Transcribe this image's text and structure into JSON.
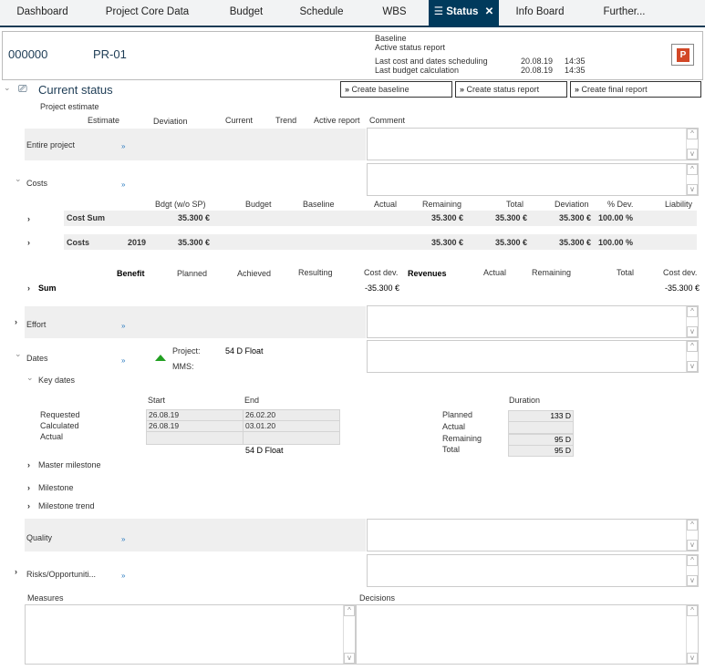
{
  "tabs": [
    "Dashboard",
    "Project Core Data",
    "Budget",
    "Schedule",
    "WBS",
    "Status",
    "Info Board",
    "Further..."
  ],
  "header": {
    "project_id": "000000",
    "project_code": "PR-01",
    "baseline_label": "Baseline",
    "active_report_label": "Active status report",
    "last_cost_label": "Last cost and dates scheduling",
    "last_cost_date": "20.08.19",
    "last_cost_time": "14:35",
    "last_budget_label": "Last budget calculation",
    "last_budget_date": "20.08.19",
    "last_budget_time": "14:35"
  },
  "section_title": "Current status",
  "buttons": {
    "baseline": "Create baseline",
    "status_report": "Create status report",
    "final_report": "Create final report"
  },
  "estimate": {
    "label": "Project estimate",
    "columns": [
      "Estimate",
      "Deviation",
      "Current",
      "Trend",
      "Active report",
      "Comment"
    ]
  },
  "rows": {
    "entire_project": "Entire project",
    "costs": "Costs",
    "effort": "Effort",
    "dates": "Dates",
    "quality": "Quality",
    "risks": "Risks/Opportuniti..."
  },
  "costs": {
    "columns": [
      "Bdgt (w/o SP)",
      "Budget",
      "Baseline",
      "Actual",
      "Remaining",
      "Total",
      "Deviation",
      "% Dev.",
      "Liability"
    ],
    "rows": [
      {
        "name": "Cost Sum",
        "year": "",
        "bdgt": "35.300 €",
        "remaining": "35.300 €",
        "total": "35.300 €",
        "deviation": "35.300 €",
        "pct": "100.00 %"
      },
      {
        "name": "Costs",
        "year": "2019",
        "bdgt": "35.300 €",
        "remaining": "35.300 €",
        "total": "35.300 €",
        "deviation": "35.300 €",
        "pct": "100.00 %"
      }
    ]
  },
  "benefit": {
    "benefit_label": "Benefit",
    "planned": "Planned",
    "achieved": "Achieved",
    "resulting": "Resulting",
    "cost_dev": "Cost dev.",
    "revenues_label": "Revenues",
    "actual": "Actual",
    "remaining": "Remaining",
    "total": "Total",
    "cost_dev2": "Cost dev.",
    "sum_label": "Sum",
    "sum_cost_dev": "-35.300 €",
    "sum_cost_dev2": "-35.300 €"
  },
  "dates": {
    "project_label": "Project:",
    "project_value": "54 D Float",
    "mms_label": "MMS:",
    "key_dates": "Key dates",
    "start": "Start",
    "end": "End",
    "duration": "Duration",
    "row_labels": [
      "Requested",
      "Calculated",
      "Actual"
    ],
    "starts": [
      "26.08.19",
      "26.08.19",
      ""
    ],
    "ends": [
      "26.02.20",
      "03.01.20",
      ""
    ],
    "float": "54 D Float",
    "dur_labels": [
      "Planned",
      "Actual",
      "Remaining",
      "Total"
    ],
    "dur_values": [
      "133 D",
      "",
      "95 D",
      "95 D"
    ],
    "master_milestone": "Master milestone",
    "milestone": "Milestone",
    "milestone_trend": "Milestone trend",
    "trend_color": "#22a022"
  },
  "measures": "Measures",
  "decisions": "Decisions"
}
